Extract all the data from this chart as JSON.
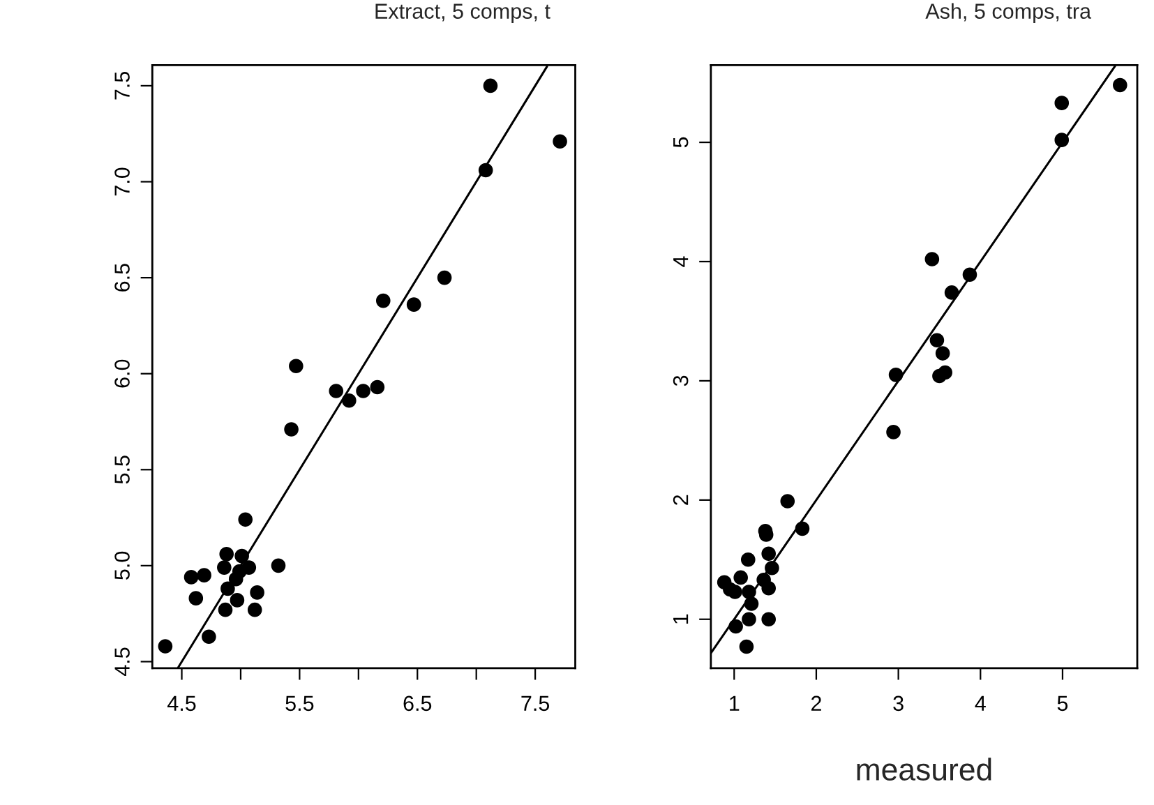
{
  "chart_data": [
    {
      "type": "scatter",
      "title": "Extract, 5 comps, t",
      "grid": false,
      "xlim": [
        4.25,
        7.84
      ],
      "ylim": [
        4.466,
        7.607
      ],
      "xticks": [
        4.5,
        {
          "value": 5,
          "label": null
        },
        5.5,
        {
          "value": 6,
          "label": null
        },
        6.5,
        {
          "value": 7,
          "label": null
        },
        7.5
      ],
      "yticks": [
        4.5,
        {
          "value": 5,
          "label": "5.0"
        },
        5.5,
        {
          "value": 6,
          "label": "6.0"
        },
        6.5,
        {
          "value": 7,
          "label": "7.0"
        },
        7.5
      ],
      "series": [
        {
          "marker": "circle",
          "color": "#000000",
          "x": [
            4.36,
            4.73,
            4.62,
            4.58,
            4.69,
            4.87,
            5.12,
            5.14,
            4.97,
            4.89,
            4.96,
            4.86,
            4.88,
            5.01,
            5.07,
            4.99,
            5.32,
            5.04,
            5.43,
            5.47,
            5.81,
            5.92,
            6.04,
            6.16,
            6.21,
            6.47,
            6.73,
            7.08,
            7.12,
            7.71
          ],
          "values": [
            4.58,
            4.63,
            4.83,
            4.94,
            4.95,
            4.77,
            4.77,
            4.86,
            4.82,
            4.88,
            4.93,
            4.99,
            5.06,
            5.05,
            4.99,
            4.97,
            5.0,
            5.24,
            5.71,
            6.04,
            5.91,
            5.86,
            5.91,
            5.93,
            6.38,
            6.36,
            6.5,
            7.06,
            7.5,
            7.21
          ]
        },
        {
          "type": "line",
          "color": "#000000",
          "x": [
            4.47,
            7.6
          ],
          "values": [
            4.47,
            7.6
          ]
        }
      ]
    },
    {
      "type": "scatter",
      "title": "Ash, 5 comps, tra",
      "xlabel": "measured",
      "grid": false,
      "xlim": [
        0.716,
        5.91
      ],
      "ylim": [
        0.59,
        5.647
      ],
      "xticks": [
        1,
        2,
        3,
        4,
        5
      ],
      "yticks": [
        1,
        2,
        3,
        4,
        5
      ],
      "series": [
        {
          "marker": "circle",
          "color": "#000000",
          "x": [
            5.7,
            4.99,
            4.99,
            3.41,
            3.87,
            3.65,
            3.47,
            3.54,
            3.5,
            3.57,
            2.97,
            2.94,
            1.65,
            1.83,
            1.38,
            1.39,
            1.42,
            1.17,
            1.46,
            1.36,
            1.42,
            0.88,
            1.08,
            1.01,
            1.18,
            1.21,
            1.02,
            1.18,
            1.42,
            1.15,
            0.95
          ],
          "values": [
            5.48,
            5.33,
            5.02,
            4.02,
            3.89,
            3.74,
            3.34,
            3.23,
            3.04,
            3.07,
            3.05,
            2.57,
            1.99,
            1.76,
            1.74,
            1.71,
            1.55,
            1.5,
            1.43,
            1.33,
            1.26,
            1.31,
            1.35,
            1.23,
            1.23,
            1.13,
            0.94,
            1.0,
            1.0,
            0.77,
            1.25
          ]
        },
        {
          "type": "line",
          "color": "#000000",
          "x": [
            0.72,
            5.64
          ],
          "values": [
            0.72,
            5.64
          ]
        }
      ]
    }
  ]
}
